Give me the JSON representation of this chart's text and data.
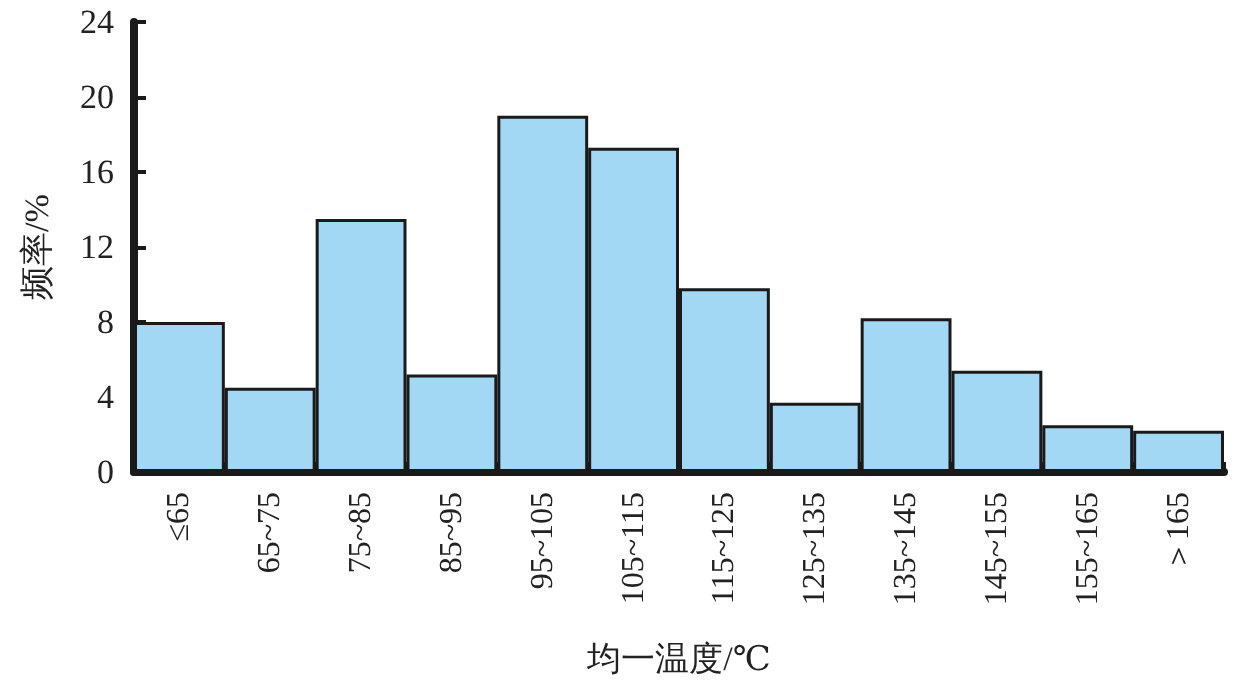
{
  "chart_data": {
    "type": "bar",
    "xlabel": "均一温度/℃",
    "ylabel": "频率/%",
    "categories": [
      "≤65",
      "65~75",
      "75~85",
      "85~95",
      "95~105",
      "105~115",
      "115~125",
      "125~135",
      "135~145",
      "145~155",
      "155~165",
      "＞165"
    ],
    "values": [
      8.0,
      4.5,
      13.5,
      5.2,
      19.0,
      17.3,
      9.8,
      3.7,
      8.2,
      5.4,
      2.5,
      2.2
    ],
    "color": "#a3d8f4",
    "ylim": [
      0,
      24
    ],
    "yticks": [
      0,
      4,
      8,
      12,
      16,
      20,
      24
    ],
    "grid": false
  }
}
